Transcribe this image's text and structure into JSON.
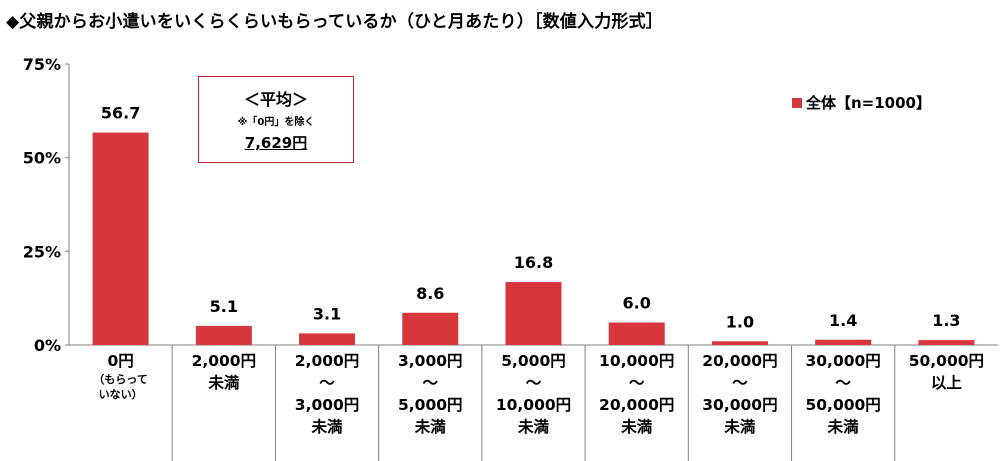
{
  "title": "◆父親からお小遣いをいくらくらいもらっているか（ひと月あたり）［数値入力形式］",
  "legend": {
    "label": "全体【n=1000】",
    "color": "#d7373a"
  },
  "average_box": {
    "heading": "＜平均＞",
    "note": "※「0円」を除く",
    "value": "7,629円"
  },
  "colors": {
    "bar": "#d7373a",
    "border": "#c0282d",
    "axis": "#808080"
  },
  "chart_data": {
    "type": "bar",
    "y_ticks": [
      "75%",
      "50%",
      "25%",
      "0%"
    ],
    "ylim": [
      0,
      75
    ],
    "categories": [
      [
        "0円"
      ],
      [
        "2,000円",
        "未満"
      ],
      [
        "2,000円",
        "～",
        "3,000円",
        "未満"
      ],
      [
        "3,000円",
        "～",
        "5,000円",
        "未満"
      ],
      [
        "5,000円",
        "～",
        "10,000円",
        "未満"
      ],
      [
        "10,000円",
        "～",
        "20,000円",
        "未満"
      ],
      [
        "20,000円",
        "～",
        "30,000円",
        "未満"
      ],
      [
        "30,000円",
        "～",
        "50,000円",
        "未満"
      ],
      [
        "50,000円",
        "以上"
      ]
    ],
    "category_notes": [
      "（もらって",
      "いない）"
    ],
    "values": [
      56.7,
      5.1,
      3.1,
      8.6,
      16.8,
      6.0,
      1.0,
      1.4,
      1.3
    ],
    "value_labels": [
      "56.7",
      "5.1",
      "3.1",
      "8.6",
      "16.8",
      "6.0",
      "1.0",
      "1.4",
      "1.3"
    ],
    "series": [
      {
        "name": "全体【n=1000】"
      }
    ]
  }
}
